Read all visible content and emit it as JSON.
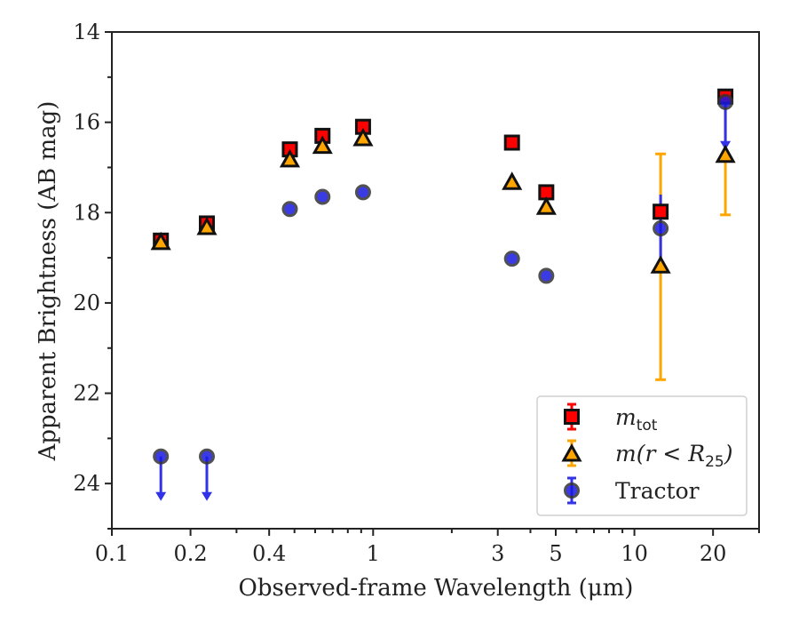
{
  "chart_data": {
    "type": "scatter",
    "xlabel": "Observed-frame Wavelength (μm)",
    "ylabel": "Apparent Brightness (AB mag)",
    "xscale": "log",
    "xlim": [
      0.1,
      30
    ],
    "ylim": [
      25,
      14
    ],
    "y_inverted": true,
    "grid": false,
    "legend_position": "lower-right",
    "x_tick_labels": [
      "0.1",
      "0.2",
      "0.4",
      "1",
      "3",
      "5",
      "10",
      "20"
    ],
    "x_tick_values": [
      0.1,
      0.2,
      0.4,
      1,
      3,
      5,
      10,
      20
    ],
    "y_tick_values": [
      14,
      16,
      18,
      20,
      22,
      24
    ],
    "series": [
      {
        "name": "m_tot",
        "legend": {
          "base": "m",
          "sub": "tot"
        },
        "marker": "square",
        "color": "#ff0000",
        "points": [
          {
            "x": 0.154,
            "y": 18.62,
            "err": 0.1
          },
          {
            "x": 0.231,
            "y": 18.24,
            "err": 0.08
          },
          {
            "x": 0.48,
            "y": 16.6,
            "err": 0.05
          },
          {
            "x": 0.64,
            "y": 16.3,
            "err": 0.05
          },
          {
            "x": 0.915,
            "y": 16.1,
            "err": 0.05
          },
          {
            "x": 3.4,
            "y": 16.45,
            "err": 0.05
          },
          {
            "x": 4.6,
            "y": 17.55,
            "err": 0.05
          },
          {
            "x": 12.6,
            "y": 17.98,
            "err": 0.08
          },
          {
            "x": 22.3,
            "y": 15.43,
            "err": 0.1
          }
        ]
      },
      {
        "name": "m(r < R_25)",
        "legend": {
          "pre": "m(r < R",
          "sub": "25",
          "post": ")"
        },
        "marker": "triangle",
        "color": "#ffa500",
        "points": [
          {
            "x": 0.154,
            "y": 18.68,
            "err": 0.05
          },
          {
            "x": 0.231,
            "y": 18.35,
            "err": 0.05
          },
          {
            "x": 0.48,
            "y": 16.85,
            "err": 0.05
          },
          {
            "x": 0.64,
            "y": 16.55,
            "err": 0.05
          },
          {
            "x": 0.915,
            "y": 16.38,
            "err": 0.05
          },
          {
            "x": 3.4,
            "y": 17.35,
            "err": 0.05
          },
          {
            "x": 4.6,
            "y": 17.9,
            "err": 0.05
          },
          {
            "x": 12.6,
            "y": 19.2,
            "err": 2.5
          },
          {
            "x": 22.3,
            "y": 16.75,
            "err": 1.3
          }
        ]
      },
      {
        "name": "Tractor",
        "marker": "circle",
        "color": "#0000ff",
        "points": [
          {
            "x": 0.154,
            "y": 23.4,
            "upper_limit": true
          },
          {
            "x": 0.231,
            "y": 23.4,
            "upper_limit": true
          },
          {
            "x": 0.48,
            "y": 17.92,
            "err": 0.05
          },
          {
            "x": 0.64,
            "y": 17.65,
            "err": 0.05
          },
          {
            "x": 0.915,
            "y": 17.55,
            "err": 0.05
          },
          {
            "x": 3.4,
            "y": 19.02,
            "err": 0.05
          },
          {
            "x": 4.6,
            "y": 19.4,
            "err": 0.05
          },
          {
            "x": 12.6,
            "y": 18.35,
            "err": 0.75
          },
          {
            "x": 22.3,
            "y": 15.55,
            "upper_limit": true
          }
        ]
      }
    ]
  }
}
